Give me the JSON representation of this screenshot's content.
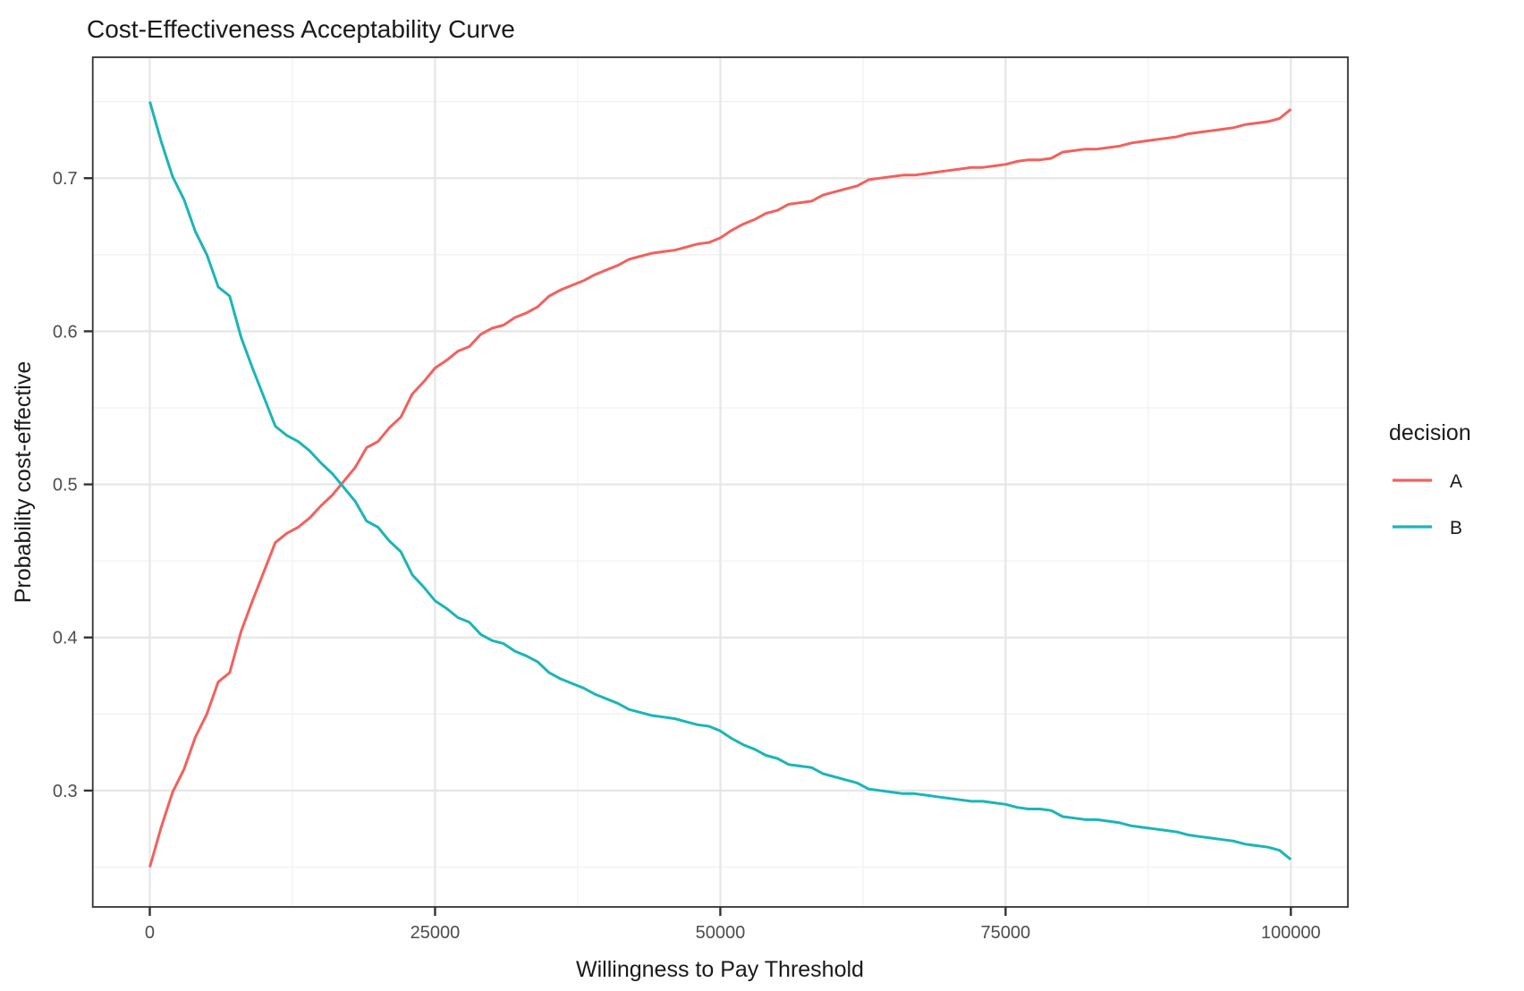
{
  "title": "Cost-Effectiveness Acceptability Curve",
  "colors": {
    "decision_a": "#F4605C",
    "decision_b": "#1BB5B8",
    "panel_background": "#FFFFFF",
    "panel_border": "#333333",
    "grid_major": "#E6E6E6",
    "grid_minor": "#F1F1F1",
    "tick_mark": "#333333",
    "tick_label": "#4D4D4D",
    "text": "#1A1A1A"
  },
  "legend": {
    "title": "decision",
    "position": "right",
    "items": [
      {
        "label": "A",
        "color": "#F4605C"
      },
      {
        "label": "B",
        "color": "#1BB5B8"
      }
    ]
  },
  "chart_data": {
    "type": "line",
    "title": "Cost-Effectiveness Acceptability Curve",
    "xlabel": "Willingness to Pay Threshold",
    "ylabel": "Probability cost-effective",
    "x_ticks": [
      0,
      25000,
      50000,
      75000,
      100000
    ],
    "x_minor": [
      12500,
      37500,
      62500,
      87500
    ],
    "y_ticks": [
      0.3,
      0.4,
      0.5,
      0.6,
      0.7
    ],
    "y_minor": [
      0.25,
      0.35,
      0.45,
      0.55,
      0.65,
      0.75
    ],
    "xlim": [
      -5000,
      105000
    ],
    "ylim": [
      0.224,
      0.779
    ],
    "grid": true,
    "legend_position": "right",
    "x": [
      0,
      1000,
      2000,
      3000,
      4000,
      5000,
      6000,
      7000,
      8000,
      9000,
      10000,
      11000,
      12000,
      13000,
      14000,
      15000,
      16000,
      17000,
      18000,
      19000,
      20000,
      21000,
      22000,
      23000,
      24000,
      25000,
      26000,
      27000,
      28000,
      29000,
      30000,
      31000,
      32000,
      33000,
      34000,
      35000,
      36000,
      37000,
      38000,
      39000,
      40000,
      41000,
      42000,
      43000,
      44000,
      45000,
      46000,
      47000,
      48000,
      49000,
      50000,
      51000,
      52000,
      53000,
      54000,
      55000,
      56000,
      57000,
      58000,
      59000,
      60000,
      61000,
      62000,
      63000,
      64000,
      65000,
      66000,
      67000,
      68000,
      69000,
      70000,
      71000,
      72000,
      73000,
      74000,
      75000,
      76000,
      77000,
      78000,
      79000,
      80000,
      81000,
      82000,
      83000,
      84000,
      85000,
      86000,
      87000,
      88000,
      89000,
      90000,
      91000,
      92000,
      93000,
      94000,
      95000,
      96000,
      97000,
      98000,
      99000,
      100000
    ],
    "series": [
      {
        "name": "A",
        "color": "#F4605C",
        "values": [
          0.25,
          0.276,
          0.299,
          0.314,
          0.335,
          0.35,
          0.371,
          0.377,
          0.404,
          0.424,
          0.443,
          0.462,
          0.468,
          0.472,
          0.478,
          0.486,
          0.493,
          0.502,
          0.511,
          0.524,
          0.528,
          0.537,
          0.544,
          0.559,
          0.567,
          0.576,
          0.581,
          0.587,
          0.59,
          0.598,
          0.602,
          0.604,
          0.609,
          0.612,
          0.616,
          0.623,
          0.627,
          0.63,
          0.633,
          0.637,
          0.64,
          0.643,
          0.647,
          0.649,
          0.651,
          0.652,
          0.653,
          0.655,
          0.657,
          0.658,
          0.661,
          0.666,
          0.67,
          0.673,
          0.677,
          0.679,
          0.683,
          0.684,
          0.685,
          0.689,
          0.691,
          0.693,
          0.695,
          0.699,
          0.7,
          0.701,
          0.702,
          0.702,
          0.703,
          0.704,
          0.705,
          0.706,
          0.707,
          0.707,
          0.708,
          0.709,
          0.711,
          0.712,
          0.712,
          0.713,
          0.717,
          0.718,
          0.719,
          0.719,
          0.72,
          0.721,
          0.723,
          0.724,
          0.725,
          0.726,
          0.727,
          0.729,
          0.73,
          0.731,
          0.732,
          0.733,
          0.735,
          0.736,
          0.737,
          0.739,
          0.745
        ]
      },
      {
        "name": "B",
        "color": "#1BB5B8",
        "values": [
          0.75,
          0.724,
          0.701,
          0.686,
          0.665,
          0.65,
          0.629,
          0.623,
          0.596,
          0.576,
          0.557,
          0.538,
          0.532,
          0.528,
          0.522,
          0.514,
          0.507,
          0.498,
          0.489,
          0.476,
          0.472,
          0.463,
          0.456,
          0.441,
          0.433,
          0.424,
          0.419,
          0.413,
          0.41,
          0.402,
          0.398,
          0.396,
          0.391,
          0.388,
          0.384,
          0.377,
          0.373,
          0.37,
          0.367,
          0.363,
          0.36,
          0.357,
          0.353,
          0.351,
          0.349,
          0.348,
          0.347,
          0.345,
          0.343,
          0.342,
          0.339,
          0.334,
          0.33,
          0.327,
          0.323,
          0.321,
          0.317,
          0.316,
          0.315,
          0.311,
          0.309,
          0.307,
          0.305,
          0.301,
          0.3,
          0.299,
          0.298,
          0.298,
          0.297,
          0.296,
          0.295,
          0.294,
          0.293,
          0.293,
          0.292,
          0.291,
          0.289,
          0.288,
          0.288,
          0.287,
          0.283,
          0.282,
          0.281,
          0.281,
          0.28,
          0.279,
          0.277,
          0.276,
          0.275,
          0.274,
          0.273,
          0.271,
          0.27,
          0.269,
          0.268,
          0.267,
          0.265,
          0.264,
          0.263,
          0.261,
          0.255
        ]
      }
    ]
  }
}
